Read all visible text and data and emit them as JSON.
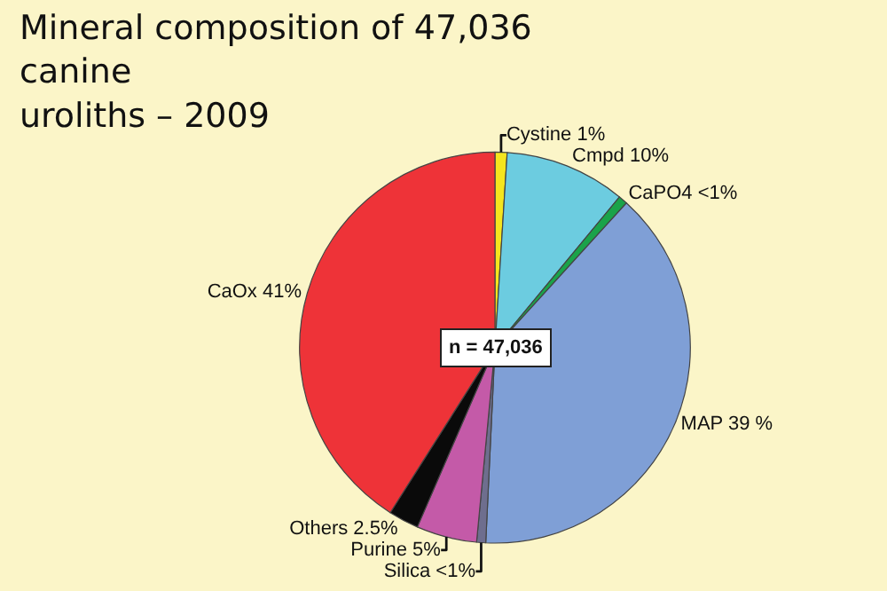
{
  "chart_data": {
    "type": "pie",
    "title": "Mineral composition of 47,036\ncanine\nuroliths – 2009",
    "categories": [
      "Cystine",
      "Cmpd",
      "CaPO4",
      "MAP",
      "Silica",
      "Purine",
      "Others",
      "CaOx"
    ],
    "values": [
      1,
      10,
      0.75,
      39,
      0.75,
      5,
      2.5,
      41
    ],
    "value_labels": [
      "1%",
      "10%",
      "<1%",
      "39 %",
      "<1%",
      "5%",
      "2.5%",
      "41%"
    ],
    "colors": [
      "#f5e51e",
      "#6ccce0",
      "#1aa34a",
      "#7f9fd6",
      "#6e6e8e",
      "#c45aa8",
      "#0a0a0a",
      "#ee3338"
    ],
    "annotations": [
      "n = 47,036"
    ],
    "legend": false
  }
}
